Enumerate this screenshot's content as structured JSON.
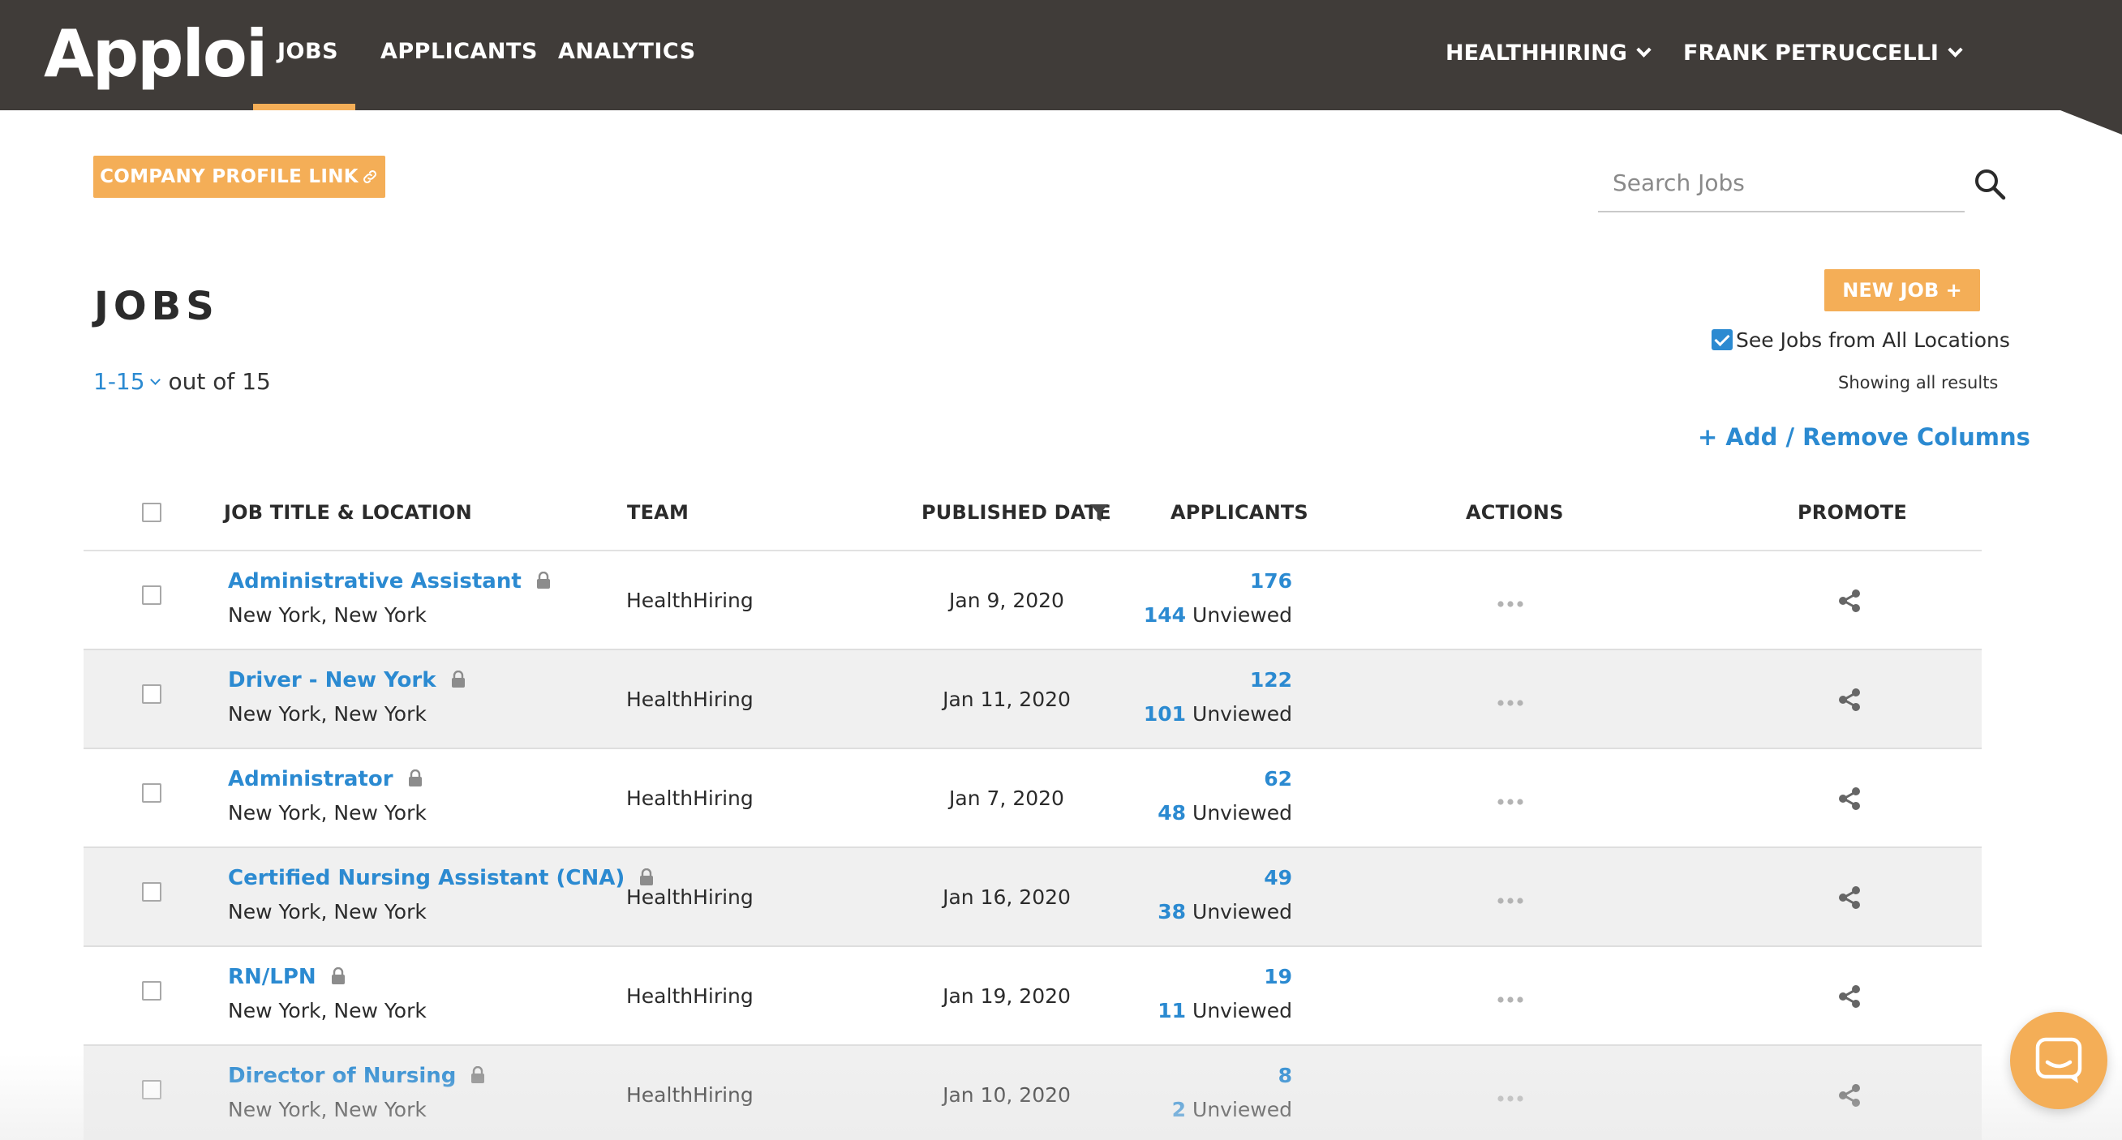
{
  "nav": {
    "logo": "Apploi",
    "links": [
      "JOBS",
      "APPLICANTS",
      "ANALYTICS"
    ],
    "company_menu": "HEALTHHIRING",
    "user_menu": "FRANK PETRUCCELLI"
  },
  "toolbar": {
    "company_profile_label": "COMPANY PROFILE LINK",
    "search_placeholder": "Search Jobs",
    "new_job_label": "NEW JOB  +"
  },
  "page": {
    "title": "JOBS",
    "range": "1-15",
    "out_of": "out of 15",
    "see_all_locations": "See Jobs from All Locations",
    "showing": "Showing all results",
    "add_remove_columns": "+ Add / Remove Columns"
  },
  "table": {
    "headers": {
      "title": "JOB TITLE & LOCATION",
      "team": "TEAM",
      "published": "PUBLISHED DATE",
      "applicants": "APPLICANTS",
      "actions": "ACTIONS",
      "promote": "PROMOTE"
    },
    "unviewed_label": "Unviewed",
    "rows": [
      {
        "title": "Administrative Assistant",
        "location": "New York, New York",
        "team": "HealthHiring",
        "date": "Jan 9, 2020",
        "applicants": "176",
        "unviewed": "144"
      },
      {
        "title": "Driver - New York",
        "location": "New York, New York",
        "team": "HealthHiring",
        "date": "Jan 11, 2020",
        "applicants": "122",
        "unviewed": "101"
      },
      {
        "title": "Administrator",
        "location": "New York, New York",
        "team": "HealthHiring",
        "date": "Jan 7, 2020",
        "applicants": "62",
        "unviewed": "48"
      },
      {
        "title": "Certified Nursing Assistant (CNA)",
        "location": "New York, New York",
        "team": "HealthHiring",
        "date": "Jan 16, 2020",
        "applicants": "49",
        "unviewed": "38"
      },
      {
        "title": "RN/LPN",
        "location": "New York, New York",
        "team": "HealthHiring",
        "date": "Jan 19, 2020",
        "applicants": "19",
        "unviewed": "11"
      },
      {
        "title": "Director of Nursing",
        "location": "New York, New York",
        "team": "HealthHiring",
        "date": "Jan 10, 2020",
        "applicants": "8",
        "unviewed": "2"
      }
    ]
  },
  "colors": {
    "nav_bg": "#403c39",
    "accent_orange": "#f4ae57",
    "link_blue": "#2b8ad1"
  }
}
